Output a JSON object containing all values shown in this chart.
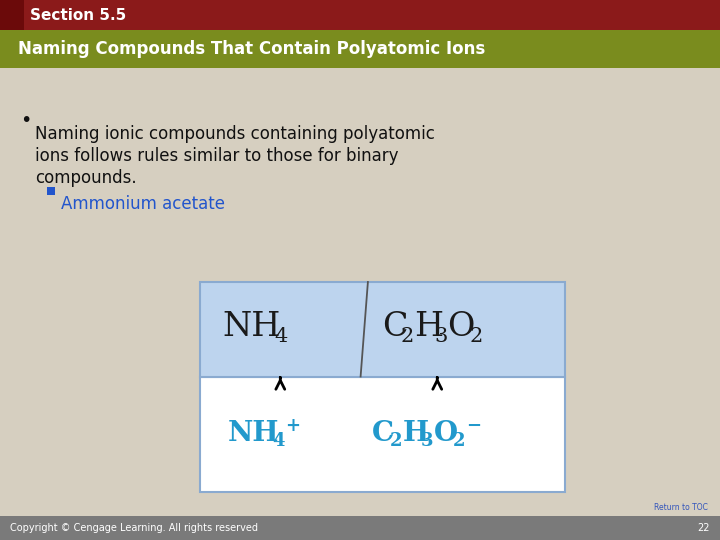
{
  "title_section": "Section 5.5",
  "title_main": "Naming Compounds That Contain Polyatomic Ions",
  "bullet_text_line1": "Naming ionic compounds containing polyatomic",
  "bullet_text_line2": "ions follows rules similar to those for binary",
  "bullet_text_line3": "compounds.",
  "sub_bullet": "Ammonium acetate",
  "bg_color": "#d6cfc0",
  "header_top_color": "#8b1a1a",
  "header_top_dark": "#6b0a0a",
  "header_bar_color": "#7a8c1e",
  "footer_color": "#7a7a7a",
  "box_fill": "#bdd4ee",
  "box_edge": "#8aaad0",
  "formula_color": "#1a1a1a",
  "ion_color": "#2299cc",
  "sub_bullet_color": "#2255cc",
  "copyright_text": "Copyright © Cengage Learning. All rights reserved",
  "page_number": "22",
  "return_toc": "Return to TOC"
}
